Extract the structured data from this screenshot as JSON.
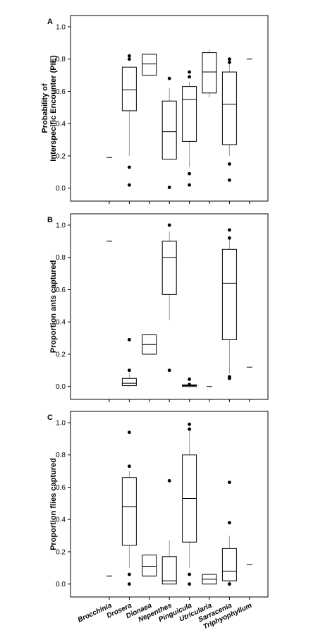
{
  "chart_data": [
    {
      "type": "box",
      "label": "A",
      "y_label": [
        "Probability of",
        "Interspecific Encounter (PIE)"
      ],
      "ylim": [
        -0.08,
        1.07
      ],
      "yticks": [
        {
          "value": 0,
          "label": "0.0"
        },
        {
          "value": 0.2,
          "label": "0.2"
        },
        {
          "value": 0.4,
          "label": "0.4"
        },
        {
          "value": 0.6,
          "label": "0.6"
        },
        {
          "value": 0.8,
          "label": "0.8"
        },
        {
          "value": 1,
          "label": "1.0"
        }
      ],
      "whisker_color": "#999999",
      "boxes": [
        {
          "median": 0.19
        },
        {
          "min": 0.2,
          "q1": 0.48,
          "median": 0.61,
          "q3": 0.75,
          "max": 0.75,
          "outliers": [
            0.82,
            0.8,
            0.13,
            0.02
          ]
        },
        {
          "q1": 0.7,
          "median": 0.77,
          "q3": 0.83
        },
        {
          "min": 0.18,
          "q1": 0.18,
          "median": 0.35,
          "q3": 0.54,
          "max": 0.62,
          "outliers": [
            0.68,
            0.005
          ]
        },
        {
          "min": 0.13,
          "q1": 0.29,
          "median": 0.55,
          "q3": 0.63,
          "max": 0.66,
          "outliers": [
            0.72,
            0.69,
            0.09,
            0.02
          ]
        },
        {
          "min": 0.56,
          "q1": 0.59,
          "median": 0.72,
          "q3": 0.84,
          "max": 0.86
        },
        {
          "min": 0.2,
          "q1": 0.27,
          "median": 0.52,
          "q3": 0.72,
          "max": 0.78,
          "outliers": [
            0.8,
            0.78,
            0.15,
            0.05
          ]
        },
        {
          "median": 0.8
        }
      ]
    },
    {
      "type": "box",
      "label": "B",
      "y_label": [
        "Proportion ants captured"
      ],
      "ylim": [
        -0.08,
        1.07
      ],
      "yticks": [
        {
          "value": 0,
          "label": "0.0"
        },
        {
          "value": 0.2,
          "label": "0.2"
        },
        {
          "value": 0.4,
          "label": "0.4"
        },
        {
          "value": 0.6,
          "label": "0.6"
        },
        {
          "value": 0.8,
          "label": "0.8"
        },
        {
          "value": 1,
          "label": "1.0"
        }
      ],
      "whisker_color": "#999999",
      "boxes": [
        {
          "median": 0.9
        },
        {
          "min": 0.0,
          "q1": 0.005,
          "median": 0.02,
          "q3": 0.05,
          "max": 0.08,
          "outliers": [
            0.29,
            0.1
          ]
        },
        {
          "q1": 0.2,
          "median": 0.26,
          "q3": 0.32
        },
        {
          "min": 0.41,
          "q1": 0.57,
          "median": 0.8,
          "q3": 0.9,
          "max": 0.96,
          "outliers": [
            1.0,
            0.1
          ]
        },
        {
          "q1": 0.0,
          "median": 0.005,
          "q3": 0.01,
          "outliers": [
            0.045,
            0.012
          ]
        },
        {
          "median": 0.0
        },
        {
          "min": 0.08,
          "q1": 0.29,
          "median": 0.64,
          "q3": 0.85,
          "max": 0.92,
          "outliers": [
            0.97,
            0.92,
            0.06,
            0.05
          ]
        },
        {
          "median": 0.12
        }
      ]
    },
    {
      "type": "box",
      "label": "C",
      "y_label": [
        "Proportion flies captured"
      ],
      "ylim": [
        -0.08,
        1.07
      ],
      "yticks": [
        {
          "value": 0,
          "label": "0.0"
        },
        {
          "value": 0.2,
          "label": "0.2"
        },
        {
          "value": 0.4,
          "label": "0.4"
        },
        {
          "value": 0.6,
          "label": "0.6"
        },
        {
          "value": 0.8,
          "label": "0.8"
        },
        {
          "value": 1,
          "label": "1.0"
        }
      ],
      "whisker_color": "#999999",
      "categories": [
        "Brocchinia",
        "Drosera",
        "Dionaea",
        "Nepenthes",
        "Pinguicula",
        "Utricularia",
        "Sarracenia",
        "Triphyophyllum"
      ],
      "boxes": [
        {
          "median": 0.05
        },
        {
          "min": 0.1,
          "q1": 0.24,
          "median": 0.48,
          "q3": 0.66,
          "max": 0.7,
          "outliers": [
            0.94,
            0.73,
            0.06,
            0.0
          ]
        },
        {
          "q1": 0.05,
          "median": 0.11,
          "q3": 0.18
        },
        {
          "min": 0.0,
          "q1": 0.0,
          "median": 0.02,
          "q3": 0.17,
          "max": 0.27,
          "outliers": [
            0.64
          ]
        },
        {
          "min": 0.1,
          "q1": 0.26,
          "median": 0.53,
          "q3": 0.8,
          "max": 0.96,
          "outliers": [
            0.99,
            0.96,
            0.06,
            0.0
          ]
        },
        {
          "q1": 0.0,
          "median": 0.03,
          "q3": 0.06
        },
        {
          "min": 0.0,
          "q1": 0.02,
          "median": 0.08,
          "q3": 0.22,
          "max": 0.3,
          "outliers": [
            0.63,
            0.38,
            0.0
          ]
        },
        {
          "median": 0.12
        }
      ]
    }
  ]
}
